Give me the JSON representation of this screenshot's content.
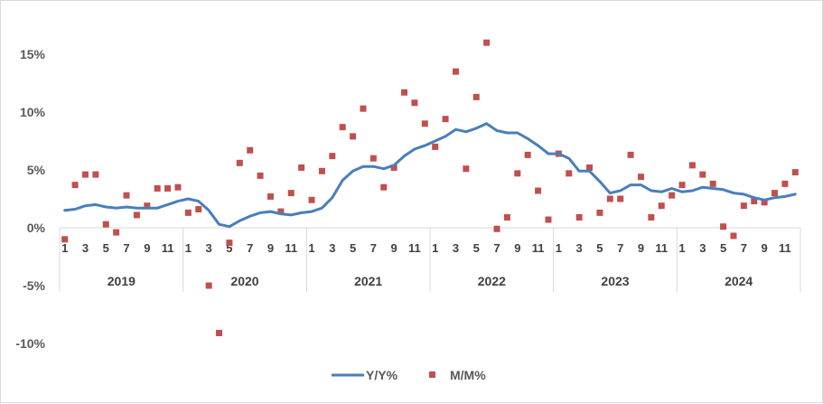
{
  "chart_data": {
    "type": "line",
    "title": "",
    "xlabel": "",
    "ylabel": "",
    "ylim": [
      -10,
      15
    ],
    "yticks": [
      15,
      10,
      5,
      0,
      -5,
      -10
    ],
    "ytick_labels": [
      "15%",
      "10%",
      "5%",
      "0%",
      "-5%",
      "-10%"
    ],
    "grid": false,
    "legend_position": "bottom",
    "years": [
      "2019",
      "2020",
      "2021",
      "2022",
      "2023",
      "2024"
    ],
    "month_labels": [
      "1",
      "3",
      "5",
      "7",
      "9",
      "11"
    ],
    "series": [
      {
        "name": "Y/Y%",
        "kind": "line",
        "color": "#4a7ebb",
        "values": [
          1.5,
          1.6,
          1.9,
          2.0,
          1.8,
          1.7,
          1.8,
          1.7,
          1.7,
          1.7,
          2.0,
          2.3,
          2.5,
          2.3,
          1.5,
          0.3,
          0.1,
          0.6,
          1.0,
          1.3,
          1.4,
          1.2,
          1.1,
          1.3,
          1.4,
          1.7,
          2.6,
          4.1,
          4.9,
          5.3,
          5.3,
          5.1,
          5.4,
          6.2,
          6.8,
          7.1,
          7.5,
          7.9,
          8.5,
          8.3,
          8.6,
          9.0,
          8.4,
          8.2,
          8.2,
          7.7,
          7.1,
          6.4,
          6.4,
          6.0,
          4.9,
          4.9,
          4.0,
          3.0,
          3.2,
          3.7,
          3.7,
          3.2,
          3.1,
          3.4,
          3.1,
          3.2,
          3.5,
          3.4,
          3.3,
          3.0,
          2.9,
          2.6,
          2.4,
          2.6,
          2.7,
          2.9
        ]
      },
      {
        "name": "M/M%",
        "kind": "scatter",
        "color": "#c0504d",
        "values": [
          -1.0,
          3.7,
          4.6,
          4.6,
          0.3,
          -0.4,
          2.8,
          1.1,
          1.9,
          3.4,
          3.4,
          3.5,
          1.3,
          1.6,
          -5.0,
          -9.1,
          -1.3,
          5.6,
          6.7,
          4.5,
          2.7,
          1.4,
          3.0,
          5.2,
          2.4,
          4.9,
          6.2,
          8.7,
          7.9,
          10.3,
          6.0,
          3.5,
          5.2,
          11.7,
          10.8,
          9.0,
          7.0,
          9.4,
          13.5,
          5.1,
          11.3,
          16.0,
          -0.1,
          0.9,
          4.7,
          6.3,
          3.2,
          0.7,
          6.4,
          4.7,
          0.9,
          5.2,
          1.3,
          2.5,
          2.5,
          6.3,
          4.4,
          0.9,
          1.9,
          2.8,
          3.7,
          5.4,
          4.6,
          3.8,
          0.1,
          -0.7,
          1.9,
          2.3,
          2.2,
          3.0,
          3.8,
          4.8
        ]
      }
    ]
  }
}
